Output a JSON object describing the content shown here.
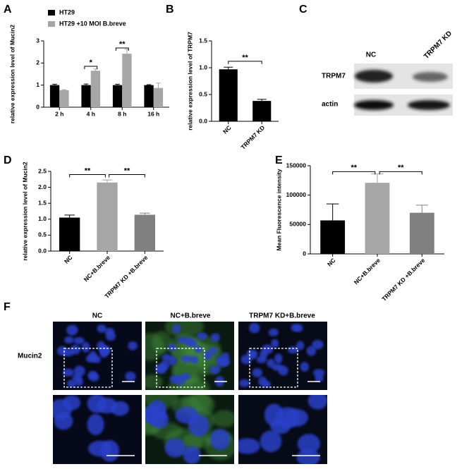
{
  "chart_data": [
    {
      "type": "bar",
      "panel": "A",
      "ylabel": "relative expression level of Mucin2",
      "categories": [
        "2 h",
        "4 h",
        "8 h",
        "16 h"
      ],
      "series": [
        {
          "name": "HT29",
          "color": "#000000",
          "values": [
            1.0,
            1.0,
            1.0,
            1.0
          ],
          "errors": [
            0.04,
            0.05,
            0.04,
            0.02
          ]
        },
        {
          "name": "HT29 +10 MOI B.breve",
          "color": "#a6a6a6",
          "values": [
            0.77,
            1.65,
            2.42,
            0.87
          ],
          "errors": [
            0.02,
            0.08,
            0.2,
            0.22
          ]
        }
      ],
      "ylim": [
        0,
        3
      ],
      "yticks": [
        0,
        1,
        2,
        3
      ],
      "annotations": [
        "*",
        "**"
      ]
    },
    {
      "type": "bar",
      "panel": "B",
      "ylabel": "relative expression level of TRPM7",
      "categories": [
        "NC",
        "TRPM7 KD"
      ],
      "values": [
        0.97,
        0.38
      ],
      "errors": [
        0.04,
        0.03
      ],
      "colors": [
        "#000000",
        "#000000"
      ],
      "ylim": [
        0,
        1.5
      ],
      "yticks": [
        {
          "value": 0,
          "label": "0.0"
        },
        0.5,
        {
          "value": 1,
          "label": "1.0"
        },
        1.5
      ],
      "annotations": [
        "**"
      ]
    },
    {
      "type": "bar",
      "panel": "D",
      "ylabel": "relative expression level of Mucin2",
      "categories": [
        "NC",
        "NC+B.breve",
        "TRPM7 KD +B.breve"
      ],
      "values": [
        1.05,
        2.15,
        1.14
      ],
      "errors": [
        0.08,
        0.08,
        0.05
      ],
      "colors": [
        "#000000",
        "#a6a6a6",
        "#808080"
      ],
      "ylim": [
        0,
        2.5
      ],
      "yticks": [
        {
          "value": 0,
          "label": "0.0"
        },
        0.5,
        {
          "value": 1,
          "label": "1.0"
        },
        1.5,
        {
          "value": 2,
          "label": "2.0"
        },
        2.5
      ],
      "annotations": [
        "**",
        "**"
      ]
    },
    {
      "type": "bar",
      "panel": "E",
      "ylabel": "Mean Fluorescence intensity",
      "categories": [
        "NC",
        "NC+B.breve",
        "TRPM7 KD +B.breve"
      ],
      "values": [
        57000,
        121000,
        70000
      ],
      "errors": [
        28000,
        15000,
        13000
      ],
      "colors": [
        "#000000",
        "#a6a6a6",
        "#808080"
      ],
      "ylim": [
        0,
        150000
      ],
      "yticks": [
        0,
        50000,
        100000,
        150000
      ],
      "annotations": [
        "**",
        "**"
      ]
    }
  ],
  "blot": {
    "panel": "C",
    "lanes": [
      "NC",
      "TRPM7 KD"
    ],
    "rows": [
      "TRPM7",
      "actin"
    ]
  },
  "microscopy": {
    "panel": "F",
    "columns": [
      "NC",
      "NC+B.breve",
      "TRPM7 KD+B.breve"
    ],
    "row_label": "Mucin2"
  }
}
